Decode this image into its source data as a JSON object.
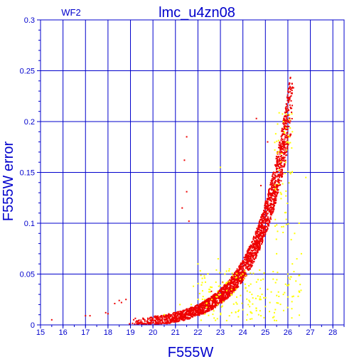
{
  "chart_data": {
    "type": "scatter",
    "title": "lmc_u4zn08",
    "subtitle": "WF2",
    "xlabel": "F555W",
    "ylabel": "F555W error",
    "xlim": [
      15,
      28.5
    ],
    "ylim": [
      0,
      0.3
    ],
    "x_ticks": [
      "15",
      "16",
      "17",
      "18",
      "19",
      "20",
      "21",
      "22",
      "23",
      "24",
      "25",
      "26",
      "27",
      "28"
    ],
    "y_ticks": [
      "0",
      "0.05",
      "0.1",
      "0.15",
      "0.2",
      "0.25",
      "0.3"
    ],
    "grid": true,
    "colors": {
      "axis": "#0000cc",
      "grid": "#0000cc",
      "series_main": "#ee0000",
      "series_flagged": "#ffff00"
    },
    "series": [
      {
        "color": "#ee0000",
        "trend": {
          "form": "exponential",
          "x_start": 19.0,
          "x_end": 26.1,
          "min_error": 0.002,
          "max_error": 0.215
        },
        "points": [
          [
            15.5,
            0.005
          ],
          [
            17.0,
            0.009
          ],
          [
            17.2,
            0.009
          ],
          [
            17.9,
            0.012
          ],
          [
            18.0,
            0.011
          ],
          [
            18.3,
            0.021
          ],
          [
            18.5,
            0.024
          ],
          [
            18.6,
            0.022
          ],
          [
            18.8,
            0.025
          ],
          [
            21.5,
            0.185
          ],
          [
            21.4,
            0.162
          ],
          [
            21.6,
            0.102
          ],
          [
            21.5,
            0.131
          ],
          [
            21.3,
            0.115
          ],
          [
            24.6,
            0.203
          ],
          [
            25.1,
            0.18
          ],
          [
            24.8,
            0.137
          ],
          [
            22.6,
            0.033
          ],
          [
            23.1,
            0.042
          ],
          [
            24.2,
            0.06
          ],
          [
            24.5,
            0.086
          ]
        ]
      },
      {
        "color": "#ffff00",
        "points": [
          [
            23.5,
            0.012
          ],
          [
            23.8,
            0.008
          ],
          [
            24.0,
            0.015
          ],
          [
            24.2,
            0.01
          ],
          [
            24.4,
            0.006
          ],
          [
            24.6,
            0.014
          ],
          [
            24.8,
            0.009
          ],
          [
            25.0,
            0.018
          ],
          [
            25.2,
            0.022
          ],
          [
            25.4,
            0.012
          ],
          [
            25.6,
            0.028
          ],
          [
            25.8,
            0.03
          ],
          [
            26.0,
            0.05
          ],
          [
            26.2,
            0.06
          ],
          [
            26.4,
            0.065
          ],
          [
            26.5,
            0.1
          ],
          [
            26.8,
            0.145
          ],
          [
            22.5,
            0.035
          ],
          [
            22.8,
            0.042
          ],
          [
            23.0,
            0.03
          ],
          [
            23.2,
            0.05
          ],
          [
            22.0,
            0.06
          ],
          [
            21.8,
            0.038
          ],
          [
            23.0,
            0.155
          ],
          [
            24.0,
            0.05
          ],
          [
            24.4,
            0.03
          ],
          [
            24.8,
            0.025
          ],
          [
            25.5,
            0.07
          ],
          [
            26.1,
            0.045
          ],
          [
            26.3,
            0.09
          ],
          [
            26.6,
            0.07
          ],
          [
            23.7,
            0.022
          ],
          [
            24.3,
            0.018
          ],
          [
            25.1,
            0.035
          ],
          [
            25.9,
            0.04
          ],
          [
            22.3,
            0.025
          ],
          [
            26.0,
            0.18
          ],
          [
            25.8,
            0.2
          ],
          [
            26.2,
            0.19
          ],
          [
            25.9,
            0.16
          ],
          [
            26.1,
            0.15
          ],
          [
            24.9,
            0.045
          ],
          [
            24.1,
            0.04
          ],
          [
            23.4,
            0.055
          ],
          [
            22.9,
            0.065
          ],
          [
            21.2,
            0.02
          ],
          [
            20.5,
            0.01
          ],
          [
            21.7,
            0.02
          ],
          [
            23.6,
            0.032
          ],
          [
            24.7,
            0.01
          ]
        ]
      }
    ]
  }
}
